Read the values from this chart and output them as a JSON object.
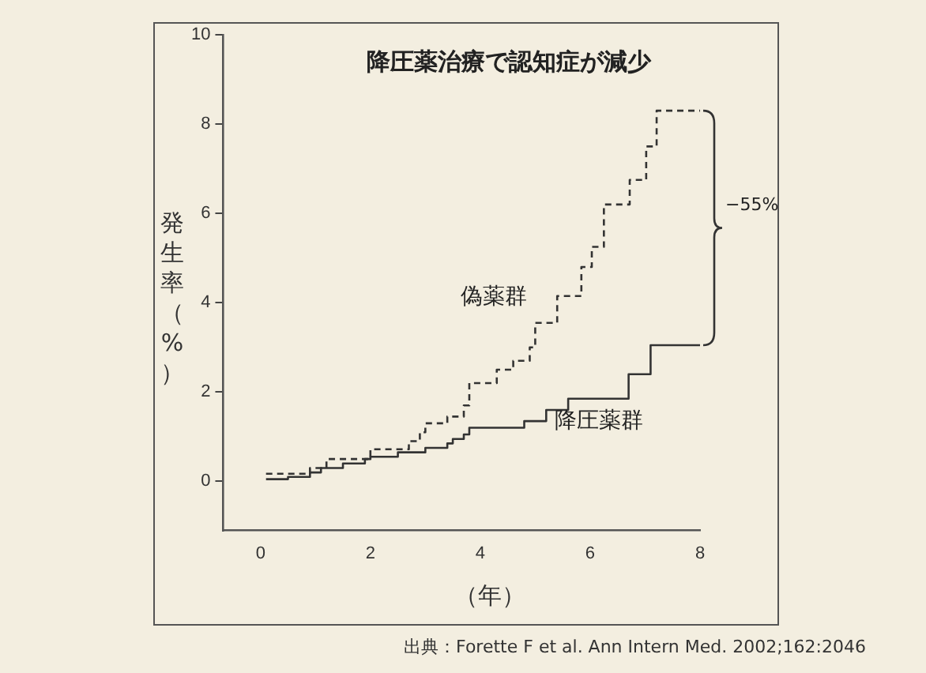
{
  "chart_data": {
    "type": "step",
    "title": "降圧薬治療で認知症が減少",
    "xlabel": "（年）",
    "ylabel": "発生率（%）",
    "xlim": [
      -0.68,
      8
    ],
    "xticks": [
      0,
      2,
      4,
      6,
      8
    ],
    "ylim": [
      -1.1,
      10
    ],
    "yticks": [
      0,
      2,
      4,
      6,
      8,
      10
    ],
    "grid": false,
    "legend": false,
    "marker": "none",
    "series": [
      {
        "name": "偽薬群",
        "color": "#333333",
        "line_style": "dashed",
        "x": [
          0.1,
          0.9,
          1.2,
          2.0,
          2.7,
          2.9,
          3.0,
          3.4,
          3.7,
          3.8,
          4.3,
          4.6,
          4.9,
          5.0,
          5.4,
          5.84,
          6.03,
          6.25,
          6.72,
          7.02,
          7.21,
          8.0
        ],
        "values": [
          0.17,
          0.3,
          0.5,
          0.72,
          0.9,
          1.1,
          1.3,
          1.45,
          1.7,
          2.2,
          2.5,
          2.7,
          3.0,
          3.55,
          4.15,
          4.8,
          5.25,
          6.2,
          6.75,
          7.5,
          8.3,
          8.3
        ]
      },
      {
        "name": "降圧薬群",
        "color": "#333333",
        "line_style": "solid",
        "x": [
          0.1,
          0.5,
          0.9,
          1.1,
          1.5,
          1.9,
          2.0,
          2.5,
          3.0,
          3.4,
          3.5,
          3.7,
          3.8,
          4.8,
          5.2,
          5.6,
          6.7,
          7.1,
          8.0
        ],
        "values": [
          0.05,
          0.1,
          0.2,
          0.3,
          0.4,
          0.5,
          0.55,
          0.65,
          0.75,
          0.85,
          0.95,
          1.05,
          1.2,
          1.35,
          1.6,
          1.85,
          2.4,
          3.05,
          3.05
        ]
      }
    ],
    "annotations": [
      "−55%",
      "出典：Forette F et al. Ann Intern Med. 2002;162:2046"
    ]
  }
}
